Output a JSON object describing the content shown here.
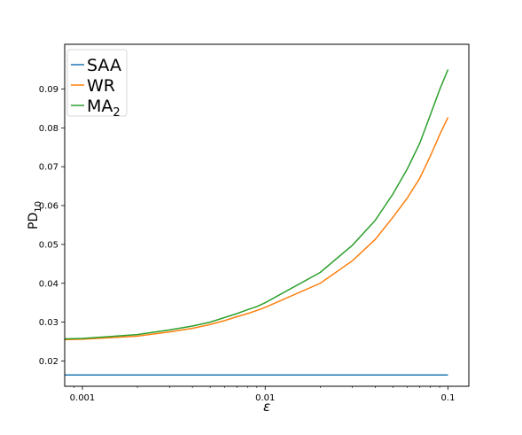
{
  "chart_data": {
    "type": "line",
    "xscale": "log",
    "xlim": [
      0.0008,
      0.13
    ],
    "ylim": [
      0.0135,
      0.1015
    ],
    "xticks": [
      0.001,
      0.01,
      0.1
    ],
    "xtick_labels": [
      "0.001",
      "0.01",
      "0.1"
    ],
    "yticks": [
      0.02,
      0.03,
      0.04,
      0.05,
      0.06,
      0.07,
      0.08,
      0.09
    ],
    "ytick_labels": [
      "0.02",
      "0.03",
      "0.04",
      "0.05",
      "0.06",
      "0.07",
      "0.08",
      "0.09"
    ],
    "xlabel": "ε",
    "ylabel": {
      "main": "PD",
      "sub": "10"
    },
    "grid": false,
    "legend_position": "top-left",
    "x": [
      0.0008,
      0.001,
      0.002,
      0.003,
      0.004,
      0.005,
      0.006,
      0.007,
      0.008,
      0.009,
      0.01,
      0.02,
      0.03,
      0.04,
      0.05,
      0.06,
      0.07,
      0.08,
      0.09,
      0.1
    ],
    "series": [
      {
        "name": "SAA",
        "legend": {
          "main": "SAA",
          "sub": ""
        },
        "color": "#1f77b4",
        "values": [
          0.0164,
          0.0164,
          0.0164,
          0.0164,
          0.0164,
          0.0164,
          0.0164,
          0.0164,
          0.0164,
          0.0164,
          0.0164,
          0.0164,
          0.0164,
          0.0164,
          0.0164,
          0.0164,
          0.0164,
          0.0164,
          0.0164,
          0.0164
        ]
      },
      {
        "name": "WR",
        "legend": {
          "main": "WR",
          "sub": ""
        },
        "color": "#ff7f0e",
        "values": [
          0.0255,
          0.0256,
          0.0264,
          0.0275,
          0.0284,
          0.0294,
          0.0304,
          0.0314,
          0.0322,
          0.033,
          0.0338,
          0.04,
          0.0458,
          0.0513,
          0.057,
          0.062,
          0.067,
          0.0727,
          0.0782,
          0.0827
        ]
      },
      {
        "name": "MA2",
        "legend": {
          "main": "MA",
          "sub": "2"
        },
        "color": "#2ca02c",
        "values": [
          0.0257,
          0.0258,
          0.0268,
          0.028,
          0.029,
          0.03,
          0.0312,
          0.0322,
          0.0332,
          0.034,
          0.035,
          0.0428,
          0.0498,
          0.0562,
          0.063,
          0.0695,
          0.076,
          0.0833,
          0.0898,
          0.095
        ]
      }
    ]
  }
}
